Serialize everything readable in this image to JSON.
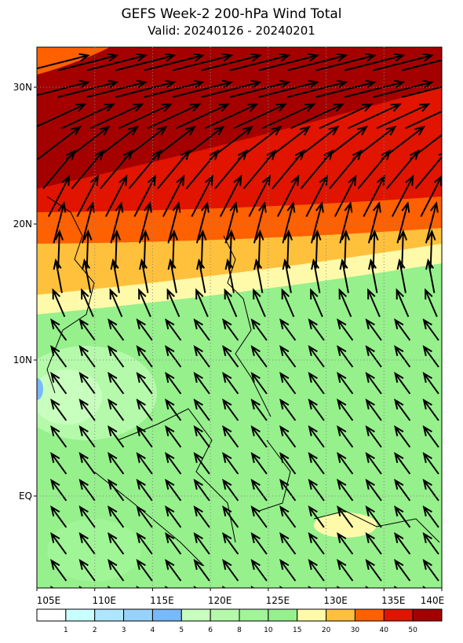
{
  "title": "GEFS Week-2 200-hPa Wind Total",
  "subtitle": "Valid: 20240126 - 20240201",
  "map": {
    "lon_labels": [
      "105E",
      "110E",
      "115E",
      "120E",
      "125E",
      "130E",
      "135E",
      "140E"
    ],
    "lat_labels": [
      "30N",
      "20N",
      "10N",
      "EQ"
    ]
  },
  "colorbar": {
    "labels": [
      "1",
      "2",
      "3",
      "4",
      "5",
      "6",
      "8",
      "10",
      "15",
      "20",
      "30",
      "40",
      "50"
    ],
    "colors": [
      "#ffffff",
      "#c8ffff",
      "#afe6ff",
      "#96d2fa",
      "#78b9fa",
      "#c8ffbe",
      "#b4faaa",
      "#a0f596",
      "#96f08c",
      "#fffaaa",
      "#ffc03c",
      "#ff6000",
      "#e11400",
      "#a50000"
    ]
  }
}
